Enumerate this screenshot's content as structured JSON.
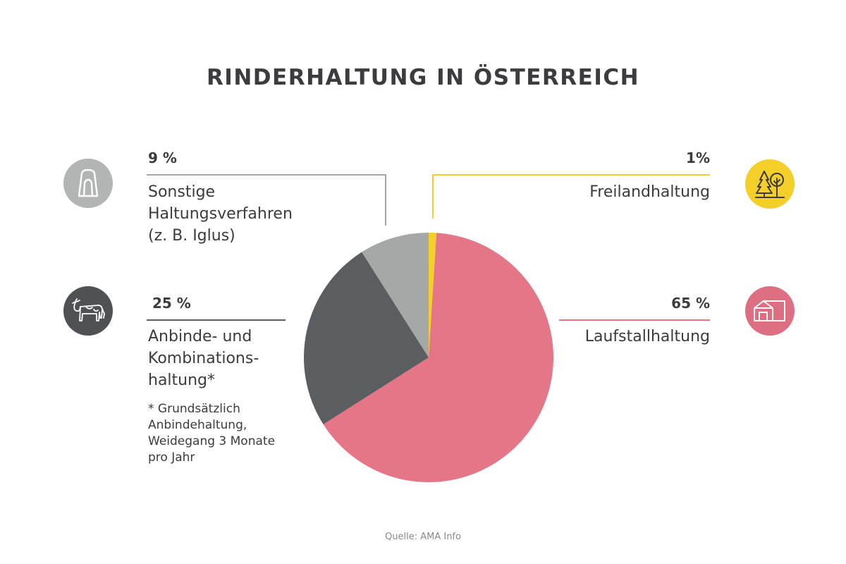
{
  "title": "RINDERHALTUNG IN ÖSTERREICH",
  "source": "Quelle: AMA Info",
  "colors": {
    "laufstall": "#e47687",
    "anbinde": "#5b5e60",
    "sonstige": "#a6a8a8",
    "freiland": "#f4cf2a"
  },
  "icons": {
    "sonstige": "igloo-icon",
    "anbinde": "cow-icon",
    "freiland": "trees-icon",
    "laufstall": "barn-icon"
  },
  "labels": {
    "sonstige": {
      "pct": "9 %",
      "text": "Sonstige\nHaltungsverfahren\n(z. B. Iglus)"
    },
    "anbinde": {
      "pct": "25 %",
      "text": "Anbinde-  und\nKombinations-\nhaltung*",
      "note": "* Grundsätzlich\nAnbindehaltung,\nWeidegang 3 Monate\npro Jahr"
    },
    "freiland": {
      "pct": "1%",
      "text": "Freilandhaltung"
    },
    "laufstall": {
      "pct": "65 %",
      "text": "Laufstallhaltung"
    }
  },
  "chart_data": {
    "type": "pie",
    "title": "RINDERHALTUNG IN ÖSTERREICH",
    "slices": [
      {
        "label": "Freilandhaltung",
        "value": 1,
        "color": "#f4cf2a"
      },
      {
        "label": "Laufstallhaltung",
        "value": 65,
        "color": "#e47687"
      },
      {
        "label": "Anbinde- und Kombinationshaltung*",
        "value": 25,
        "color": "#5b5e60"
      },
      {
        "label": "Sonstige Haltungsverfahren (z. B. Iglus)",
        "value": 9,
        "color": "#a6a8a8"
      }
    ],
    "start": "12 o'clock",
    "direction": "clockwise"
  }
}
